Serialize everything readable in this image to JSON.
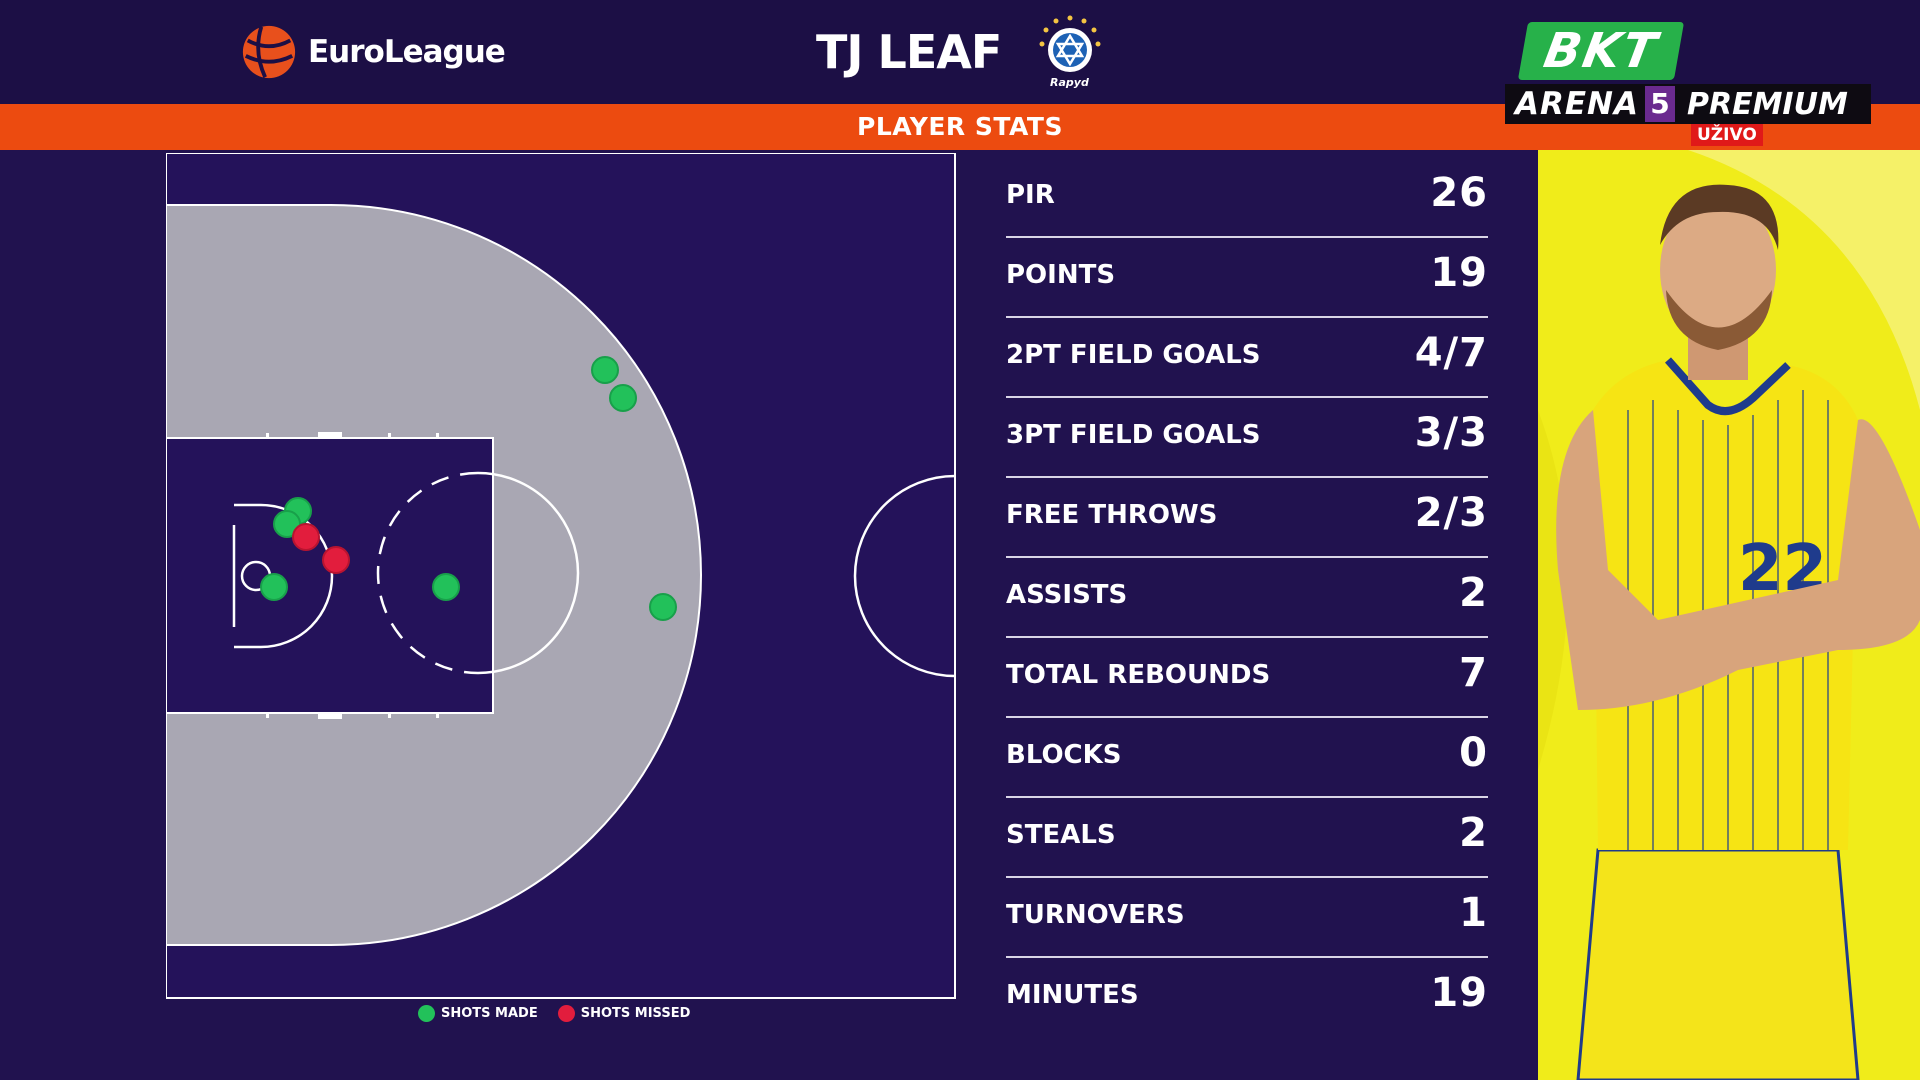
{
  "header": {
    "league_name": "EuroLeague",
    "player_name": "TJ LEAF",
    "team_crest_text": "Rapyd",
    "section_title": "PLAYER STATS"
  },
  "broadcaster": {
    "brand": "BKT",
    "channel_name": "ARENA",
    "channel_number": "5",
    "tier": "PREMIUM",
    "live_label": "UŽIVO"
  },
  "stats": [
    {
      "label": "PIR",
      "value": "26"
    },
    {
      "label": "POINTS",
      "value": "19"
    },
    {
      "label": "2PT FIELD GOALS",
      "value": "4/7"
    },
    {
      "label": "3PT FIELD GOALS",
      "value": "3/3"
    },
    {
      "label": "FREE THROWS",
      "value": "2/3"
    },
    {
      "label": "ASSISTS",
      "value": "2"
    },
    {
      "label": "TOTAL REBOUNDS",
      "value": "7"
    },
    {
      "label": "BLOCKS",
      "value": "0"
    },
    {
      "label": "STEALS",
      "value": "2"
    },
    {
      "label": "TURNOVERS",
      "value": "1"
    },
    {
      "label": "MINUTES",
      "value": "19"
    }
  ],
  "shot_chart": {
    "legend": {
      "made": "SHOTS MADE",
      "missed": "SHOTS MISSED"
    },
    "colors": {
      "made": "#22c15a",
      "missed": "#e21d3d",
      "court_fill": "#a9a7b3",
      "court_bg": "#24125a",
      "lines": "#ffffff"
    }
  },
  "colors": {
    "accent": "#ec4b10",
    "background": "#21124f",
    "header": "#1c0f45",
    "photo_bg": "#f0ec1a"
  }
}
